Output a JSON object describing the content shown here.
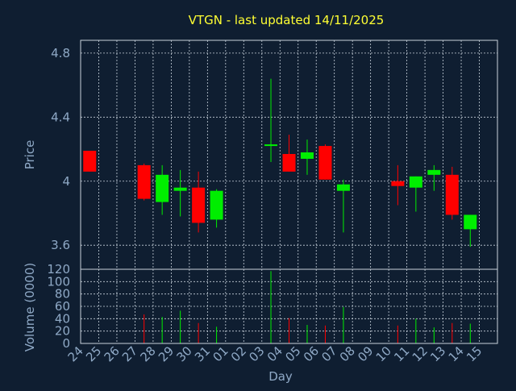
{
  "chart_data": {
    "type": "candlestick",
    "title": "VTGN - last updated 14/11/2025",
    "xlabel": "Day",
    "x_ticks": [
      "24",
      "25",
      "26",
      "27",
      "28",
      "29",
      "30",
      "31",
      "01",
      "02",
      "03",
      "04",
      "05",
      "06",
      "07",
      "08",
      "09",
      "10",
      "11",
      "12",
      "13",
      "14",
      "15"
    ],
    "grid": true,
    "colors": {
      "up": "#00ee00",
      "down": "#ff0000",
      "grid": "#c8d2dc",
      "title": "#ffff33",
      "axis_text": "#8fa9c6",
      "background": "#0f1e31"
    },
    "price": {
      "ylabel": "Price",
      "ylim": [
        3.45,
        4.88
      ],
      "y_ticks": [
        3.6,
        4.0,
        4.4,
        4.8
      ],
      "y_tick_labels": [
        "3.6",
        "4",
        "4.4",
        "4.8"
      ],
      "candles": [
        {
          "day": "24",
          "open": 4.19,
          "high": 4.19,
          "low": 4.06,
          "close": 4.06
        },
        {
          "day": "27",
          "open": 4.1,
          "high": 4.11,
          "low": 3.88,
          "close": 3.89
        },
        {
          "day": "28",
          "open": 3.87,
          "high": 4.1,
          "low": 3.79,
          "close": 4.04
        },
        {
          "day": "29",
          "open": 3.94,
          "high": 4.07,
          "low": 3.78,
          "close": 3.96
        },
        {
          "day": "30",
          "open": 3.96,
          "high": 4.06,
          "low": 3.68,
          "close": 3.74
        },
        {
          "day": "31",
          "open": 3.76,
          "high": 3.95,
          "low": 3.71,
          "close": 3.94
        },
        {
          "day": "03",
          "open": 4.22,
          "high": 4.64,
          "low": 4.12,
          "close": 4.23
        },
        {
          "day": "04",
          "open": 4.17,
          "high": 4.29,
          "low": 4.06,
          "close": 4.06
        },
        {
          "day": "05",
          "open": 4.14,
          "high": 4.26,
          "low": 4.04,
          "close": 4.18
        },
        {
          "day": "06",
          "open": 4.22,
          "high": 4.23,
          "low": 4.01,
          "close": 4.01
        },
        {
          "day": "07",
          "open": 3.94,
          "high": 4.01,
          "low": 3.68,
          "close": 3.98
        },
        {
          "day": "10",
          "open": 4.0,
          "high": 4.1,
          "low": 3.85,
          "close": 3.97
        },
        {
          "day": "11",
          "open": 3.96,
          "high": 4.03,
          "low": 3.81,
          "close": 4.03
        },
        {
          "day": "12",
          "open": 4.04,
          "high": 4.1,
          "low": 3.94,
          "close": 4.07
        },
        {
          "day": "13",
          "open": 4.04,
          "high": 4.09,
          "low": 3.76,
          "close": 3.79
        },
        {
          "day": "14",
          "open": 3.7,
          "high": 3.79,
          "low": 3.59,
          "close": 3.79
        }
      ]
    },
    "volume": {
      "ylabel": "Volume (0000)",
      "ylim": [
        0,
        120
      ],
      "y_ticks": [
        0,
        20,
        40,
        60,
        80,
        100,
        120
      ],
      "y_tick_labels": [
        "0",
        "20",
        "40",
        "60",
        "80",
        "100",
        "120"
      ],
      "bars": [
        {
          "day": "27",
          "value": 47,
          "direction": "down"
        },
        {
          "day": "28",
          "value": 43,
          "direction": "up"
        },
        {
          "day": "29",
          "value": 53,
          "direction": "up"
        },
        {
          "day": "30",
          "value": 33,
          "direction": "down"
        },
        {
          "day": "31",
          "value": 27,
          "direction": "up"
        },
        {
          "day": "03",
          "value": 117,
          "direction": "up"
        },
        {
          "day": "04",
          "value": 41,
          "direction": "down"
        },
        {
          "day": "05",
          "value": 30,
          "direction": "up"
        },
        {
          "day": "06",
          "value": 29,
          "direction": "down"
        },
        {
          "day": "07",
          "value": 59,
          "direction": "up"
        },
        {
          "day": "10",
          "value": 29,
          "direction": "down"
        },
        {
          "day": "11",
          "value": 40,
          "direction": "up"
        },
        {
          "day": "12",
          "value": 26,
          "direction": "up"
        },
        {
          "day": "13",
          "value": 33,
          "direction": "down"
        },
        {
          "day": "14",
          "value": 32,
          "direction": "up"
        }
      ]
    }
  }
}
